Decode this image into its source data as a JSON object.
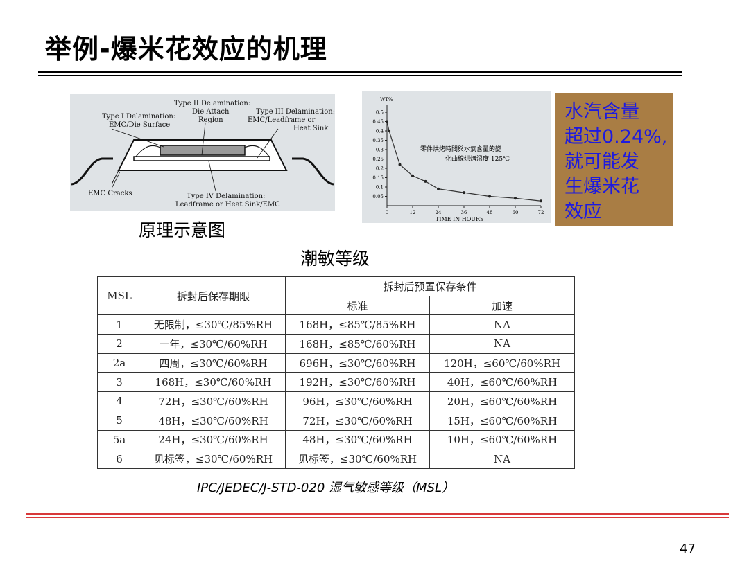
{
  "slide": {
    "title": "举例-爆米花效应的机理",
    "page_number": "47"
  },
  "diagram": {
    "labels": {
      "type2_line1": "Type II Delamination:",
      "type2_line2": "Die Attach",
      "type2_line3": "Region",
      "type1_line1": "Type I Delamination:",
      "type1_line2": "EMC/Die Surface",
      "type3_line1": "Type III Delamination:",
      "type3_line2": "EMC/Leadframe or",
      "type3_line3": "Heat Sink",
      "cracks": "EMC Cracks",
      "type4_line1": "Type IV Delamination:",
      "type4_line2": "Leadframe or Heat Sink/EMC"
    },
    "caption": "原理示意图"
  },
  "chart_data": {
    "type": "line",
    "title": "零件烘烤時間與水氣含量的變化曲線烘烤溫度 125℃",
    "title_line1": "零件烘烤時間與水氣含量的變",
    "title_line2": "化曲線烘烤溫度 125℃",
    "ylabel": "WT%",
    "xlabel": "TIME IN HOURS",
    "xlim": [
      0,
      72
    ],
    "ylim": [
      0,
      0.5
    ],
    "x_ticks": [
      "0",
      "12",
      "24",
      "36",
      "48",
      "60",
      "72"
    ],
    "y_ticks": [
      "0.05",
      "0.1",
      "0.15",
      "0.2",
      "0.25",
      "0.3",
      "0.35",
      "0.4",
      "0.45",
      "0.5"
    ],
    "x": [
      0,
      1,
      6,
      12,
      18,
      24,
      36,
      48,
      60,
      72
    ],
    "values": [
      0.45,
      0.4,
      0.22,
      0.16,
      0.13,
      0.09,
      0.07,
      0.05,
      0.04,
      0.025
    ]
  },
  "note": {
    "line1": "水汽含量",
    "line2": "超过0.24%,",
    "line3": "就可能发",
    "line4": "生爆米花",
    "line5": "效应"
  },
  "table": {
    "caption_above": "潮敏等级",
    "headers": {
      "msl": "MSL",
      "floor_life": "拆封后保存期限",
      "preconditioning": "拆封后预置保存条件",
      "standard": "标准",
      "accelerated": "加速"
    },
    "rows": [
      {
        "level": "1",
        "floor": "无限制，≤30℃/85%RH",
        "standard": "168H，≤85℃/85%RH",
        "accel": "NA"
      },
      {
        "level": "2",
        "floor": "一年，≤30℃/60%RH",
        "standard": "168H，≤85℃/60%RH",
        "accel": "NA"
      },
      {
        "level": "2a",
        "floor": "四周，≤30℃/60%RH",
        "standard": "696H，≤30℃/60%RH",
        "accel": "120H，≤60℃/60%RH"
      },
      {
        "level": "3",
        "floor": "168H，≤30℃/60%RH",
        "standard": "192H，≤30℃/60%RH",
        "accel": "40H，≤60℃/60%RH"
      },
      {
        "level": "4",
        "floor": "72H，≤30℃/60%RH",
        "standard": "96H，≤30℃/60%RH",
        "accel": "20H，≤60℃/60%RH"
      },
      {
        "level": "5",
        "floor": "48H，≤30℃/60%RH",
        "standard": "72H，≤30℃/60%RH",
        "accel": "15H，≤60℃/60%RH"
      },
      {
        "level": "5a",
        "floor": "24H，≤30℃/60%RH",
        "standard": "48H，≤30℃/60%RH",
        "accel": "10H，≤60℃/60%RH"
      },
      {
        "level": "6",
        "floor": "见标签，≤30℃/60%RH",
        "standard": "见标签，≤30℃/60%RH",
        "accel": "NA"
      }
    ],
    "caption_below": "IPC/JEDEC/J-STD-020 湿气敏感等级（MSL）"
  }
}
